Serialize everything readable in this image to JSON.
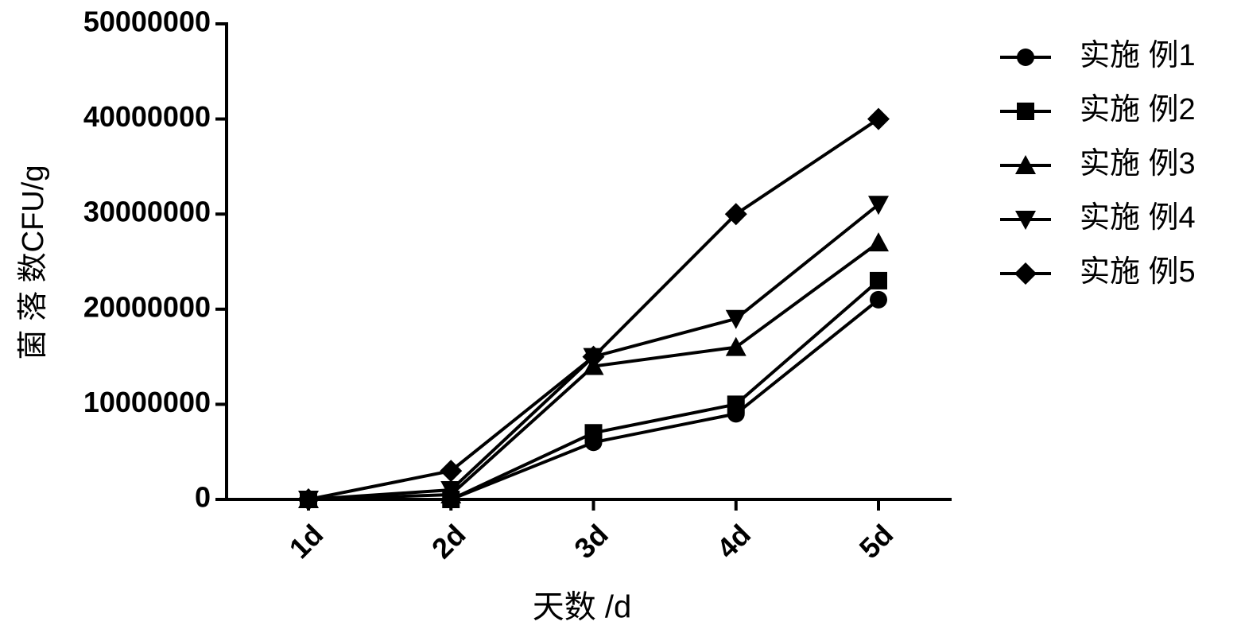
{
  "chart_data": {
    "type": "line",
    "categories": [
      "1d",
      "2d",
      "3d",
      "4d",
      "5d"
    ],
    "series": [
      {
        "name": "实施 例1",
        "color": "#000000",
        "marker": "circle",
        "values": [
          0,
          0,
          6000000,
          9000000,
          21000000
        ]
      },
      {
        "name": "实施 例2",
        "color": "#000000",
        "marker": "square",
        "values": [
          0,
          0,
          7000000,
          10000000,
          23000000
        ]
      },
      {
        "name": "实施 例3",
        "color": "#000000",
        "marker": "triangle-up",
        "values": [
          0,
          500000,
          14000000,
          16000000,
          27000000
        ]
      },
      {
        "name": "实施 例4",
        "color": "#000000",
        "marker": "triangle-down",
        "values": [
          0,
          1000000,
          15000000,
          19000000,
          31000000
        ]
      },
      {
        "name": "实施 例5",
        "color": "#000000",
        "marker": "diamond",
        "values": [
          0,
          3000000,
          15000000,
          30000000,
          40000000
        ]
      }
    ],
    "ylim": [
      0,
      50000000
    ],
    "yticks": [
      0,
      10000000,
      20000000,
      30000000,
      40000000,
      50000000
    ],
    "x_label": "天数 /d",
    "y_label": "菌 落 数CFU/g",
    "legend": "right"
  }
}
